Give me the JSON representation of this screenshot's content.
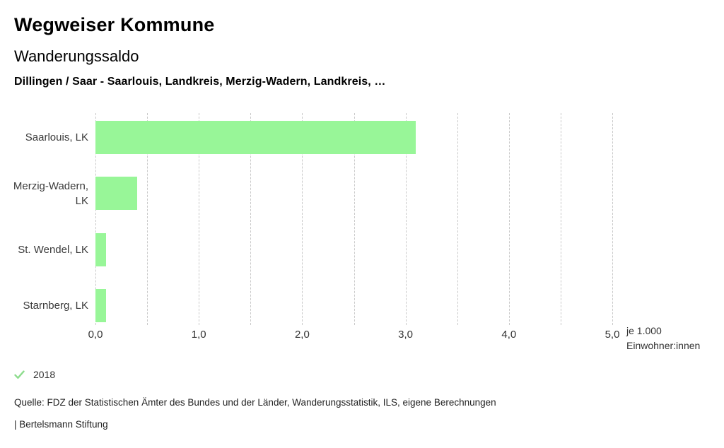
{
  "header": {
    "title": "Wegweiser Kommune",
    "subtitle": "Wanderungssaldo",
    "comparison": "Dillingen / Saar - Saarlouis, Landkreis, Merzig-Wadern, Landkreis, …"
  },
  "chart_data": {
    "type": "bar",
    "orientation": "horizontal",
    "title": "Wanderungssaldo",
    "categories": [
      "Saarlouis, LK",
      "Merzig-Wadern, LK",
      "St. Wendel, LK",
      "Starnberg, LK"
    ],
    "values": [
      3.1,
      0.4,
      0.1,
      0.1
    ],
    "series_name": "2018",
    "xlabel": "je 1.000 Einwohner:innen",
    "ylabel": "",
    "xlim": [
      0,
      5
    ],
    "xticks": [
      0,
      1,
      2,
      3,
      4,
      5
    ],
    "xtick_labels": [
      "0,0",
      "1,0",
      "2,0",
      "3,0",
      "4,0",
      "5,0"
    ],
    "gridline_step": 0.5,
    "grid": true,
    "legend_position": "bottom-left",
    "bar_color": "#98f698",
    "gridline_color": "#c9c9c9"
  },
  "axis_unit": {
    "line1": "je 1.000",
    "line2": "Einwohner:innen"
  },
  "legend": {
    "year": "2018",
    "check_color": "#8ddc8d"
  },
  "footer": {
    "source": "Quelle: FDZ der Statistischen Ämter des Bundes und der Länder, Wanderungsstatistik, ILS, eigene Berechnungen",
    "branding": "| Bertelsmann Stiftung"
  }
}
